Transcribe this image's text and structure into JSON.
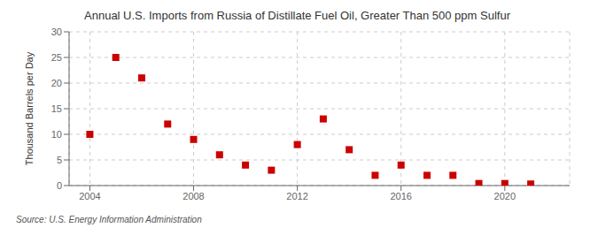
{
  "chart_data": {
    "type": "scatter",
    "title": "Annual U.S. Imports from Russia of Distillate Fuel Oil, Greater Than 500 ppm Sulfur",
    "y_label": "Thousand Barrels per Day",
    "annotation": "Source: U.S. Energy Information Administration",
    "x": [
      2004,
      2005,
      2006,
      2007,
      2008,
      2009,
      2010,
      2011,
      2012,
      2013,
      2014,
      2015,
      2016,
      2017,
      2018,
      2019,
      2020,
      2021
    ],
    "values": [
      10,
      25,
      21,
      12,
      9,
      6,
      4,
      3,
      8,
      13,
      7,
      2,
      4,
      2,
      2,
      0.4,
      0.4,
      0.3
    ],
    "xlim": [
      2003.2,
      2022.5
    ],
    "ylim": [
      0,
      30
    ],
    "xticks": [
      2004,
      2008,
      2012,
      2016,
      2020
    ],
    "yticks": [
      0,
      5,
      10,
      15,
      20,
      25,
      30
    ],
    "color": "#cc0000",
    "marker": "square",
    "grid": true
  }
}
